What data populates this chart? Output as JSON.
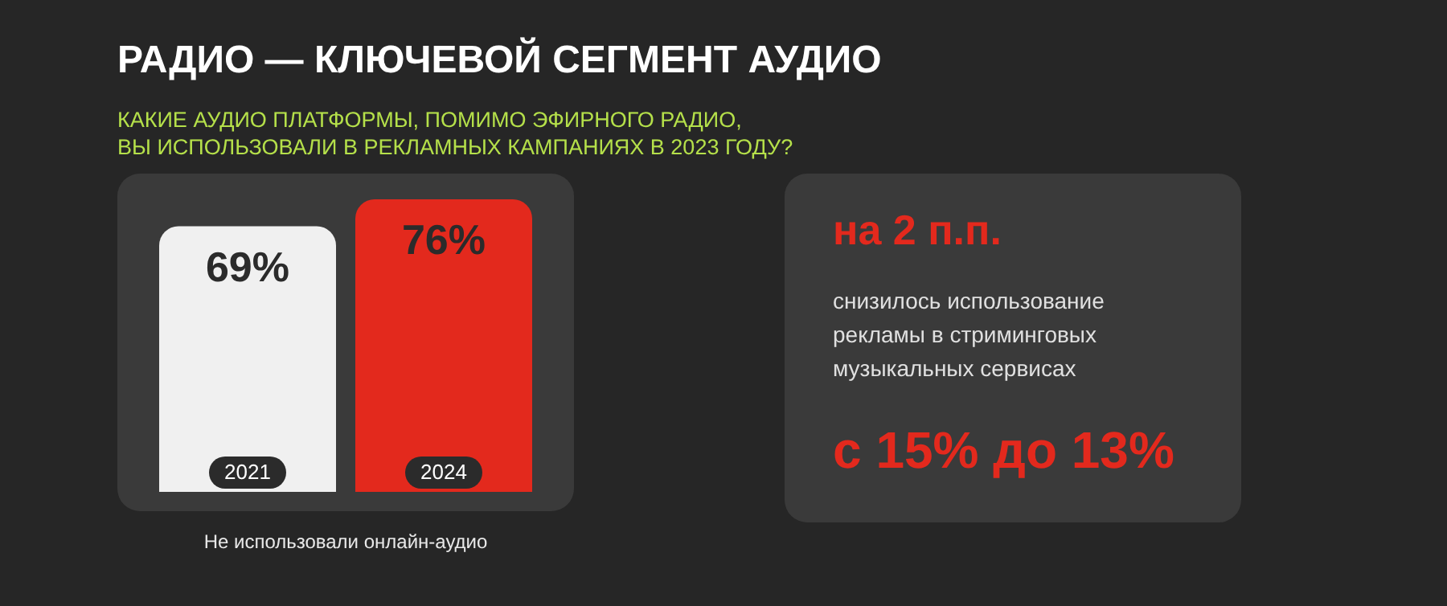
{
  "chart_data": [
    {
      "type": "bar",
      "title": "РАДИО — КЛЮЧЕВОЙ СЕГМЕНТ АУДИО",
      "subtitle": "КАКИЕ АУДИО ПЛАТФОРМЫ, ПОМИМО ЭФИРНОГО РАДИО,\nВЫ ИСПОЛЬЗОВАЛИ В РЕКЛАМНЫХ КАМПАНИЯХ В 2023 ГОДУ?",
      "xlabel": "Не использовали онлайн-аудио",
      "categories": [
        "2021",
        "2024"
      ],
      "values": [
        69,
        76
      ],
      "colors": [
        "#f0f0f0",
        "#e3291d"
      ],
      "value_labels": [
        "69%",
        "76%"
      ]
    },
    {
      "type": "other",
      "title": "на 2 п.п.",
      "annotations": [
        "снизилось использование рекламы в стриминговых музыкальных сервисах",
        "с 15% до 13%"
      ]
    }
  ]
}
